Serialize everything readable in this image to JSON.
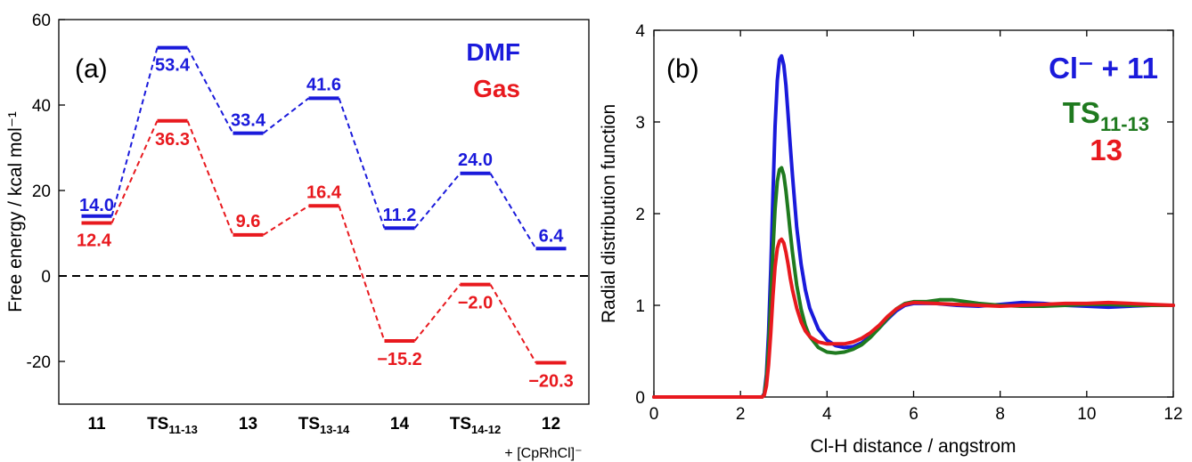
{
  "chart_data": [
    {
      "type": "energy-profile",
      "panel_label": "(a)",
      "ylabel": "Free energy / kcal mol⁻¹",
      "ylim": [
        -30,
        60
      ],
      "yticks": [
        -20,
        0,
        20,
        40,
        60
      ],
      "ytick_labels": [
        "-20",
        "0",
        "20",
        "40",
        "60"
      ],
      "zero_line": "dashed",
      "legend_placement": "top-right",
      "states": [
        {
          "main": "11",
          "sub": ""
        },
        {
          "main": "TS",
          "sub": "11-13"
        },
        {
          "main": "13",
          "sub": ""
        },
        {
          "main": "TS",
          "sub": "13-14"
        },
        {
          "main": "14",
          "sub": ""
        },
        {
          "main": "TS",
          "sub": "14-12"
        },
        {
          "main": "12",
          "sub": ""
        }
      ],
      "extra_label": "+ [CpRhCl]⁻",
      "series": [
        {
          "name": "DMF",
          "color": "#1a1adb",
          "values": [
            14.0,
            53.4,
            33.4,
            41.6,
            11.2,
            24.0,
            6.4
          ],
          "labels": [
            "14.0",
            "53.4",
            "33.4",
            "41.6",
            "11.2",
            "24.0",
            "6.4"
          ]
        },
        {
          "name": "Gas",
          "color": "#e8191e",
          "values": [
            12.4,
            36.3,
            9.6,
            16.4,
            -15.2,
            -2.0,
            -20.3
          ],
          "labels": [
            "12.4",
            "36.3",
            "9.6",
            "16.4",
            "−15.2",
            "−2.0",
            "−20.3"
          ]
        }
      ]
    },
    {
      "type": "line",
      "panel_label": "(b)",
      "xlabel": "Cl-H distance / angstrom",
      "ylabel": "Radial distribution function",
      "xlim": [
        0,
        12
      ],
      "ylim": [
        0,
        4
      ],
      "xticks": [
        0,
        2,
        4,
        6,
        8,
        10,
        12
      ],
      "xtick_labels": [
        "0",
        "2",
        "4",
        "6",
        "8",
        "10",
        "12"
      ],
      "yticks": [
        0,
        1,
        2,
        3,
        4
      ],
      "ytick_labels": [
        "0",
        "1",
        "2",
        "3",
        "4"
      ],
      "legend_placement": "top-right",
      "series": [
        {
          "name": "Cl⁻ + 11",
          "color": "#1a1adb",
          "x": [
            0,
            2.5,
            2.55,
            2.6,
            2.65,
            2.7,
            2.75,
            2.8,
            2.85,
            2.9,
            2.95,
            3.0,
            3.05,
            3.1,
            3.15,
            3.2,
            3.3,
            3.4,
            3.5,
            3.6,
            3.8,
            4.0,
            4.2,
            4.4,
            4.6,
            4.8,
            5.0,
            5.2,
            5.4,
            5.6,
            5.8,
            6.0,
            6.5,
            7.0,
            7.5,
            8.0,
            8.5,
            9.0,
            9.5,
            10.0,
            10.5,
            11.0,
            11.5,
            12.0
          ],
          "y": [
            0,
            0,
            0.04,
            0.25,
            0.7,
            1.4,
            2.2,
            2.95,
            3.45,
            3.68,
            3.72,
            3.62,
            3.4,
            3.08,
            2.75,
            2.42,
            1.85,
            1.45,
            1.17,
            0.97,
            0.74,
            0.62,
            0.56,
            0.54,
            0.55,
            0.59,
            0.66,
            0.75,
            0.85,
            0.94,
            1.0,
            1.02,
            1.02,
            1.0,
            0.99,
            1.01,
            1.03,
            1.02,
            1.0,
            0.99,
            0.98,
            0.99,
            1.0,
            1.0
          ]
        },
        {
          "name": "TS11-13",
          "label_main": "TS",
          "label_sub": "11-13",
          "color": "#1f7a1f",
          "x": [
            0,
            2.5,
            2.55,
            2.6,
            2.65,
            2.7,
            2.75,
            2.8,
            2.85,
            2.9,
            2.95,
            3.0,
            3.05,
            3.1,
            3.15,
            3.2,
            3.3,
            3.4,
            3.5,
            3.6,
            3.8,
            4.0,
            4.2,
            4.4,
            4.6,
            4.8,
            5.0,
            5.2,
            5.4,
            5.6,
            5.8,
            6.0,
            6.3,
            6.6,
            6.9,
            7.2,
            7.5,
            8.0,
            8.5,
            9.0,
            9.5,
            10.0,
            10.5,
            11.0,
            11.5,
            12.0
          ],
          "y": [
            0,
            0,
            0.03,
            0.2,
            0.55,
            1.05,
            1.6,
            2.05,
            2.35,
            2.48,
            2.5,
            2.42,
            2.25,
            2.03,
            1.8,
            1.58,
            1.22,
            0.96,
            0.78,
            0.66,
            0.54,
            0.49,
            0.48,
            0.49,
            0.52,
            0.57,
            0.65,
            0.75,
            0.86,
            0.96,
            1.02,
            1.04,
            1.04,
            1.06,
            1.06,
            1.04,
            1.02,
            1.0,
            0.99,
            0.99,
            1.0,
            1.01,
            1.01,
            1.0,
            1.0,
            1.0
          ]
        },
        {
          "name": "13",
          "color": "#e8191e",
          "x": [
            0,
            2.5,
            2.55,
            2.6,
            2.65,
            2.7,
            2.75,
            2.8,
            2.85,
            2.9,
            2.95,
            3.0,
            3.05,
            3.1,
            3.15,
            3.2,
            3.3,
            3.4,
            3.5,
            3.6,
            3.8,
            4.0,
            4.2,
            4.4,
            4.6,
            4.8,
            5.0,
            5.2,
            5.4,
            5.6,
            5.8,
            6.0,
            6.5,
            7.0,
            7.5,
            8.0,
            8.5,
            9.0,
            9.5,
            10.0,
            10.5,
            11.0,
            11.5,
            12.0
          ],
          "y": [
            0,
            0,
            0.02,
            0.12,
            0.35,
            0.7,
            1.1,
            1.42,
            1.62,
            1.7,
            1.72,
            1.68,
            1.58,
            1.45,
            1.3,
            1.17,
            0.97,
            0.82,
            0.72,
            0.66,
            0.6,
            0.58,
            0.58,
            0.58,
            0.6,
            0.64,
            0.7,
            0.78,
            0.88,
            0.96,
            1.01,
            1.03,
            1.02,
            1.01,
            1.0,
            0.99,
            1.0,
            1.01,
            1.02,
            1.02,
            1.03,
            1.02,
            1.01,
            1.0
          ]
        }
      ]
    }
  ]
}
